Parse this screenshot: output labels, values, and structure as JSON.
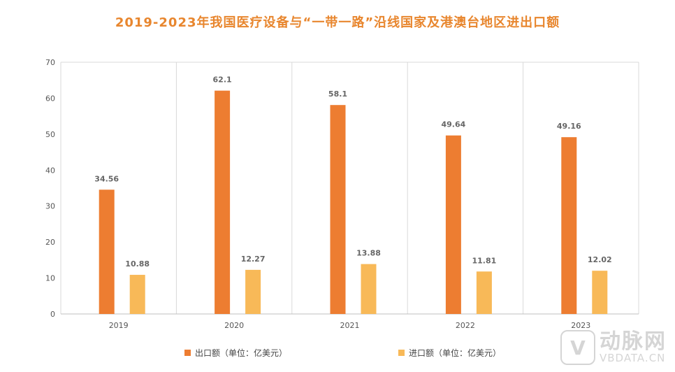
{
  "chart_data": {
    "type": "bar",
    "title": "2019-2023年我国医疗设备与“一带一路”沿线国家及港澳台地区进出口额",
    "categories": [
      "2019",
      "2020",
      "2021",
      "2022",
      "2023"
    ],
    "series": [
      {
        "name": "出口额（单位：亿美元）",
        "values": [
          34.56,
          62.1,
          58.1,
          49.64,
          49.16
        ],
        "color": "#ED7D31"
      },
      {
        "name": "进口额（单位：亿美元）",
        "values": [
          10.88,
          12.27,
          13.88,
          11.81,
          12.02
        ],
        "color": "#F8B958"
      }
    ],
    "value_labels": [
      [
        "34.56",
        "62.1",
        "58.1",
        "49.64",
        "49.16"
      ],
      [
        "10.88",
        "12.27",
        "13.88",
        "11.81",
        "12.02"
      ]
    ],
    "ylim": [
      0,
      70
    ],
    "yticks": [
      0,
      10,
      20,
      30,
      40,
      50,
      60,
      70
    ],
    "xlabel": "",
    "ylabel": "",
    "grid": "vertical separators between categories",
    "legend_position": "bottom"
  },
  "watermark": {
    "mark": "V",
    "text_cn": "动脉网",
    "text_en": "VBDATA.CN"
  }
}
